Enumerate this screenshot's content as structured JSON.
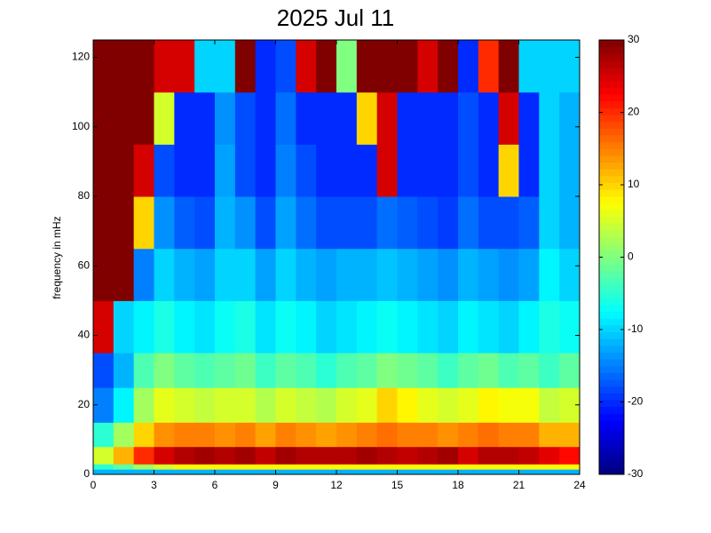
{
  "chart_data": {
    "type": "heatmap",
    "title": "2025 Jul 11",
    "y_label": "frequency in mHz",
    "colormap": "jet",
    "x": [
      0,
      1,
      2,
      3,
      4,
      5,
      6,
      7,
      8,
      9,
      10,
      11,
      12,
      13,
      14,
      15,
      16,
      17,
      18,
      19,
      20,
      21,
      22,
      23,
      24
    ],
    "y": [
      0,
      1.5,
      3,
      8,
      15,
      25,
      35,
      50,
      65,
      80,
      95,
      110,
      125
    ],
    "values": [
      [
        -12,
        -12,
        -12,
        -12,
        -12,
        -12,
        -12,
        -12,
        -12,
        -12,
        -12,
        -12,
        -12,
        -12,
        -12,
        -12,
        -12,
        -12,
        -12,
        -12,
        -12,
        -12,
        -12,
        -12
      ],
      [
        -5,
        -2,
        2,
        5,
        8,
        8,
        8,
        8,
        8,
        8,
        8,
        8,
        8,
        8,
        8,
        8,
        8,
        8,
        8,
        8,
        8,
        8,
        8,
        8
      ],
      [
        5,
        12,
        20,
        25,
        27,
        28,
        27,
        28,
        26,
        28,
        27,
        27,
        27,
        28,
        27,
        26,
        27,
        28,
        25,
        27,
        27,
        26,
        24,
        22
      ],
      [
        -5,
        2,
        10,
        14,
        15,
        15,
        14,
        15,
        13,
        15,
        14,
        13,
        14,
        15,
        16,
        15,
        15,
        14,
        15,
        16,
        15,
        15,
        12,
        12
      ],
      [
        -15,
        -8,
        2,
        6,
        5,
        4,
        5,
        5,
        3,
        5,
        4,
        3,
        5,
        6,
        10,
        8,
        6,
        5,
        6,
        8,
        7,
        7,
        4,
        5
      ],
      [
        -18,
        -12,
        -3,
        0,
        -2,
        -3,
        -2,
        -1,
        -4,
        -2,
        -3,
        -5,
        -3,
        -2,
        0,
        -1,
        -2,
        -4,
        -2,
        -1,
        -3,
        -2,
        -4,
        -2
      ],
      [
        25,
        -10,
        -8,
        -6,
        -8,
        -9,
        -7,
        -6,
        -9,
        -7,
        -8,
        -10,
        -9,
        -8,
        -7,
        -8,
        -9,
        -10,
        -8,
        -9,
        -10,
        -8,
        -6,
        -7
      ],
      [
        30,
        30,
        -15,
        -10,
        -12,
        -13,
        -10,
        -10,
        -13,
        -10,
        -12,
        -13,
        -12,
        -12,
        -11,
        -12,
        -13,
        -14,
        -12,
        -13,
        -14,
        -13,
        -8,
        -10
      ],
      [
        30,
        30,
        10,
        -14,
        -17,
        -18,
        -12,
        -14,
        -18,
        -13,
        -16,
        -18,
        -18,
        -18,
        -16,
        -17,
        -18,
        -19,
        -16,
        -18,
        -18,
        -17,
        -10,
        -12
      ],
      [
        30,
        30,
        25,
        -18,
        -20,
        -20,
        -13,
        -18,
        -20,
        -15,
        -18,
        -20,
        -20,
        -20,
        25,
        -20,
        -20,
        -20,
        -18,
        -20,
        10,
        -20,
        -10,
        -12
      ],
      [
        30,
        30,
        30,
        5,
        -20,
        -20,
        -14,
        -18,
        -20,
        -16,
        -20,
        -20,
        -20,
        10,
        25,
        -20,
        -20,
        -20,
        -18,
        -20,
        25,
        -20,
        -10,
        -12
      ],
      [
        30,
        30,
        30,
        25,
        25,
        -10,
        -10,
        30,
        -20,
        -18,
        25,
        30,
        0,
        30,
        30,
        30,
        25,
        30,
        -20,
        20,
        30,
        -10,
        -10,
        -10
      ]
    ],
    "xlim": [
      0,
      24
    ],
    "xticks": [
      0,
      3,
      6,
      9,
      12,
      15,
      18,
      21,
      24
    ],
    "ylim": [
      0,
      125
    ],
    "yticks": [
      0,
      20,
      40,
      60,
      80,
      100,
      120
    ],
    "zlim": [
      -30,
      30
    ],
    "zticks": [
      -30,
      -20,
      -10,
      0,
      10,
      20,
      30
    ]
  }
}
